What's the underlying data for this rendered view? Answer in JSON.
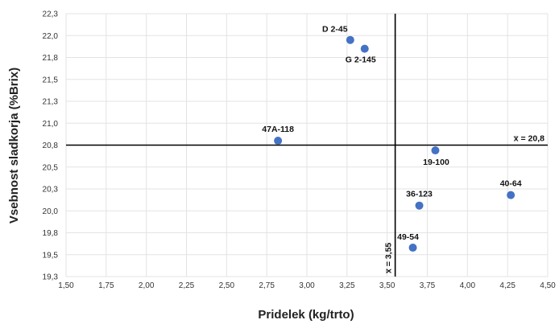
{
  "chart_data": {
    "type": "scatter",
    "xlabel": "Pridelek (kg/trto)",
    "ylabel": "Vsebnost sladkorja (%Brix)",
    "xlim": [
      1.5,
      4.5
    ],
    "ylim": [
      19.3,
      22.3
    ],
    "grid": true,
    "x_ticks": [
      "1,50",
      "1,75",
      "2,00",
      "2,25",
      "2,50",
      "2,75",
      "3,00",
      "3,25",
      "3,50",
      "3,75",
      "4,00",
      "4,25",
      "4,50"
    ],
    "y_ticks": [
      "19,3",
      "19,5",
      "19,8",
      "20,0",
      "20,3",
      "20,5",
      "20,8",
      "21,0",
      "21,3",
      "21,5",
      "21,8",
      "22,0",
      "22,3"
    ],
    "points": [
      {
        "label": "D 2-45",
        "x": 3.27,
        "y": 22.0
      },
      {
        "label": "G 2-145",
        "x": 3.36,
        "y": 21.9
      },
      {
        "label": "47A-118",
        "x": 2.82,
        "y": 20.85
      },
      {
        "label": "19-100",
        "x": 3.8,
        "y": 20.74
      },
      {
        "label": "40-64",
        "x": 4.27,
        "y": 20.23
      },
      {
        "label": "36-123",
        "x": 3.7,
        "y": 20.11
      },
      {
        "label": "49-54",
        "x": 3.66,
        "y": 19.63
      }
    ],
    "point_color": "#4472c4",
    "reference_lines": [
      {
        "axis": "y",
        "value": 20.8,
        "label": "x̅ = 20,8"
      },
      {
        "axis": "x",
        "value": 3.55,
        "label": "x̅ = 3,55"
      }
    ]
  }
}
